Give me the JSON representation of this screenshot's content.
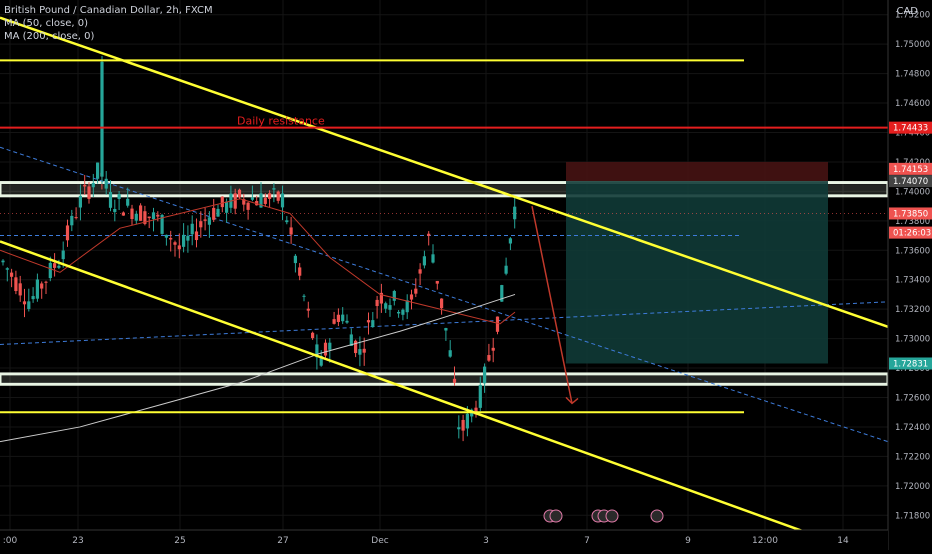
{
  "header": {
    "symbol": "British Pound / Canadian Dollar, 2h, FXCM",
    "indicators": [
      "MA (50, close, 0)",
      "MA (200, close, 0)"
    ],
    "currency": "CAD"
  },
  "colors": {
    "background": "#000000",
    "up": "#26a69a",
    "down": "#ef5350",
    "trendline": "#ffff33",
    "resistance": "#e41e1e",
    "zone": "#e9f5e4",
    "target_box": "#0f3a36",
    "stop_box": "#4a1414",
    "ma50": "#c0392b",
    "ma200": "#cccccc",
    "dashed": "#3d7bd9"
  },
  "annotations": {
    "resistance_label": "Daily resistance"
  },
  "chart_data": {
    "type": "candlestick",
    "ylim": [
      1.717,
      1.753
    ],
    "y_ticks": [
      1.752,
      1.75,
      1.748,
      1.746,
      1.744,
      1.742,
      1.74,
      1.738,
      1.736,
      1.734,
      1.732,
      1.73,
      1.728,
      1.726,
      1.724,
      1.722,
      1.72,
      1.718
    ],
    "x_ticks": [
      ":00",
      "23",
      "25",
      "27",
      "Dec",
      "3",
      "7",
      "9",
      "12:00",
      "14"
    ],
    "price_labels": [
      {
        "text": "1.74433",
        "value": 1.74433,
        "color": "#e41e1e"
      },
      {
        "text": "1.74153",
        "value": 1.74153,
        "color": "#ef5350"
      },
      {
        "text": "1.74070",
        "value": 1.7407,
        "color": "#444444"
      },
      {
        "text": "1.73850",
        "value": 1.7385,
        "color": "#ef5350"
      },
      {
        "text": "01:26:03",
        "value": 1.7372,
        "color": "#ef5350"
      },
      {
        "text": "1.72831",
        "value": 1.72831,
        "color": "#26a69a"
      }
    ],
    "horizontal_lines": [
      {
        "name": "top",
        "value": 1.7489,
        "color": "#ffff33"
      },
      {
        "name": "daily-resistance",
        "value": 1.74433,
        "color": "#e41e1e"
      },
      {
        "name": "bottom",
        "value": 1.725,
        "color": "#ffff33"
      }
    ],
    "zones": [
      {
        "name": "resistance-zone",
        "from": 1.7397,
        "to": 1.7406
      },
      {
        "name": "support-zone",
        "from": 1.7269,
        "to": 1.7276
      }
    ]
  }
}
